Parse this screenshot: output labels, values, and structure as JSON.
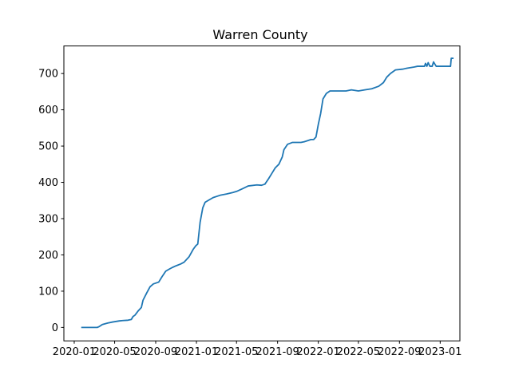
{
  "chart_data": {
    "type": "line",
    "title": "Warren County",
    "xlabel": "",
    "ylabel": "",
    "xlim": [
      "2019-12-01",
      "2023-03-01"
    ],
    "ylim": [
      -37,
      776
    ],
    "grid": false,
    "color": "#1f77b4",
    "x_ticks": [
      "2020-01",
      "2020-05",
      "2020-09",
      "2021-01",
      "2021-05",
      "2021-09",
      "2022-01",
      "2022-05",
      "2022-09",
      "2023-01"
    ],
    "y_ticks": [
      0,
      100,
      200,
      300,
      400,
      500,
      600,
      700
    ],
    "series": [
      {
        "x": [
          "2020-01-22",
          "2020-03-01",
          "2020-03-10",
          "2020-03-15",
          "2020-03-25",
          "2020-04-10",
          "2020-04-25",
          "2020-05-15",
          "2020-05-25",
          "2020-06-10",
          "2020-06-20",
          "2020-06-25",
          "2020-07-01",
          "2020-07-10",
          "2020-07-20",
          "2020-07-25",
          "2020-08-05",
          "2020-08-15",
          "2020-08-25",
          "2020-09-10",
          "2020-09-20",
          "2020-10-01",
          "2020-10-10",
          "2020-10-20",
          "2020-11-01",
          "2020-11-15",
          "2020-11-25",
          "2020-12-10",
          "2020-12-22",
          "2020-12-30",
          "2021-01-05",
          "2021-01-12",
          "2021-01-20",
          "2021-01-27",
          "2021-02-05",
          "2021-02-20",
          "2021-03-15",
          "2021-04-01",
          "2021-04-20",
          "2021-05-01",
          "2021-05-20",
          "2021-06-05",
          "2021-07-01",
          "2021-07-15",
          "2021-07-25",
          "2021-08-05",
          "2021-08-15",
          "2021-08-25",
          "2021-09-05",
          "2021-09-15",
          "2021-09-20",
          "2021-10-01",
          "2021-10-15",
          "2021-11-10",
          "2021-11-20",
          "2021-12-10",
          "2021-12-18",
          "2021-12-25",
          "2022-01-01",
          "2022-01-08",
          "2022-01-15",
          "2022-01-25",
          "2022-02-05",
          "2022-03-01",
          "2022-03-25",
          "2022-04-10",
          "2022-05-01",
          "2022-05-20",
          "2022-06-10",
          "2022-07-01",
          "2022-07-15",
          "2022-07-25",
          "2022-08-05",
          "2022-08-20",
          "2022-09-10",
          "2022-09-25",
          "2022-10-15",
          "2022-10-25",
          "2022-11-10",
          "2022-11-15",
          "2022-11-18",
          "2022-11-22",
          "2022-11-26",
          "2022-12-01",
          "2022-12-05",
          "2022-12-08",
          "2022-12-12",
          "2022-12-20",
          "2023-01-05",
          "2023-01-10",
          "2023-01-15",
          "2023-01-25",
          "2023-02-01",
          "2023-02-03",
          "2023-02-10"
        ],
        "y": [
          0,
          0,
          0,
          2,
          8,
          12,
          15,
          18,
          19,
          20,
          22,
          30,
          34,
          45,
          55,
          75,
          95,
          112,
          120,
          125,
          140,
          155,
          160,
          165,
          170,
          175,
          180,
          195,
          215,
          225,
          230,
          290,
          330,
          345,
          350,
          358,
          365,
          368,
          372,
          375,
          383,
          390,
          393,
          392,
          395,
          410,
          425,
          440,
          450,
          470,
          490,
          505,
          510,
          510,
          512,
          518,
          518,
          525,
          560,
          590,
          630,
          645,
          652,
          652,
          652,
          655,
          652,
          655,
          658,
          665,
          675,
          690,
          700,
          710,
          712,
          715,
          718,
          720,
          720,
          720,
          728,
          720,
          730,
          720,
          720,
          720,
          732,
          720,
          720,
          720,
          720,
          720,
          720,
          742,
          742
        ]
      }
    ]
  }
}
